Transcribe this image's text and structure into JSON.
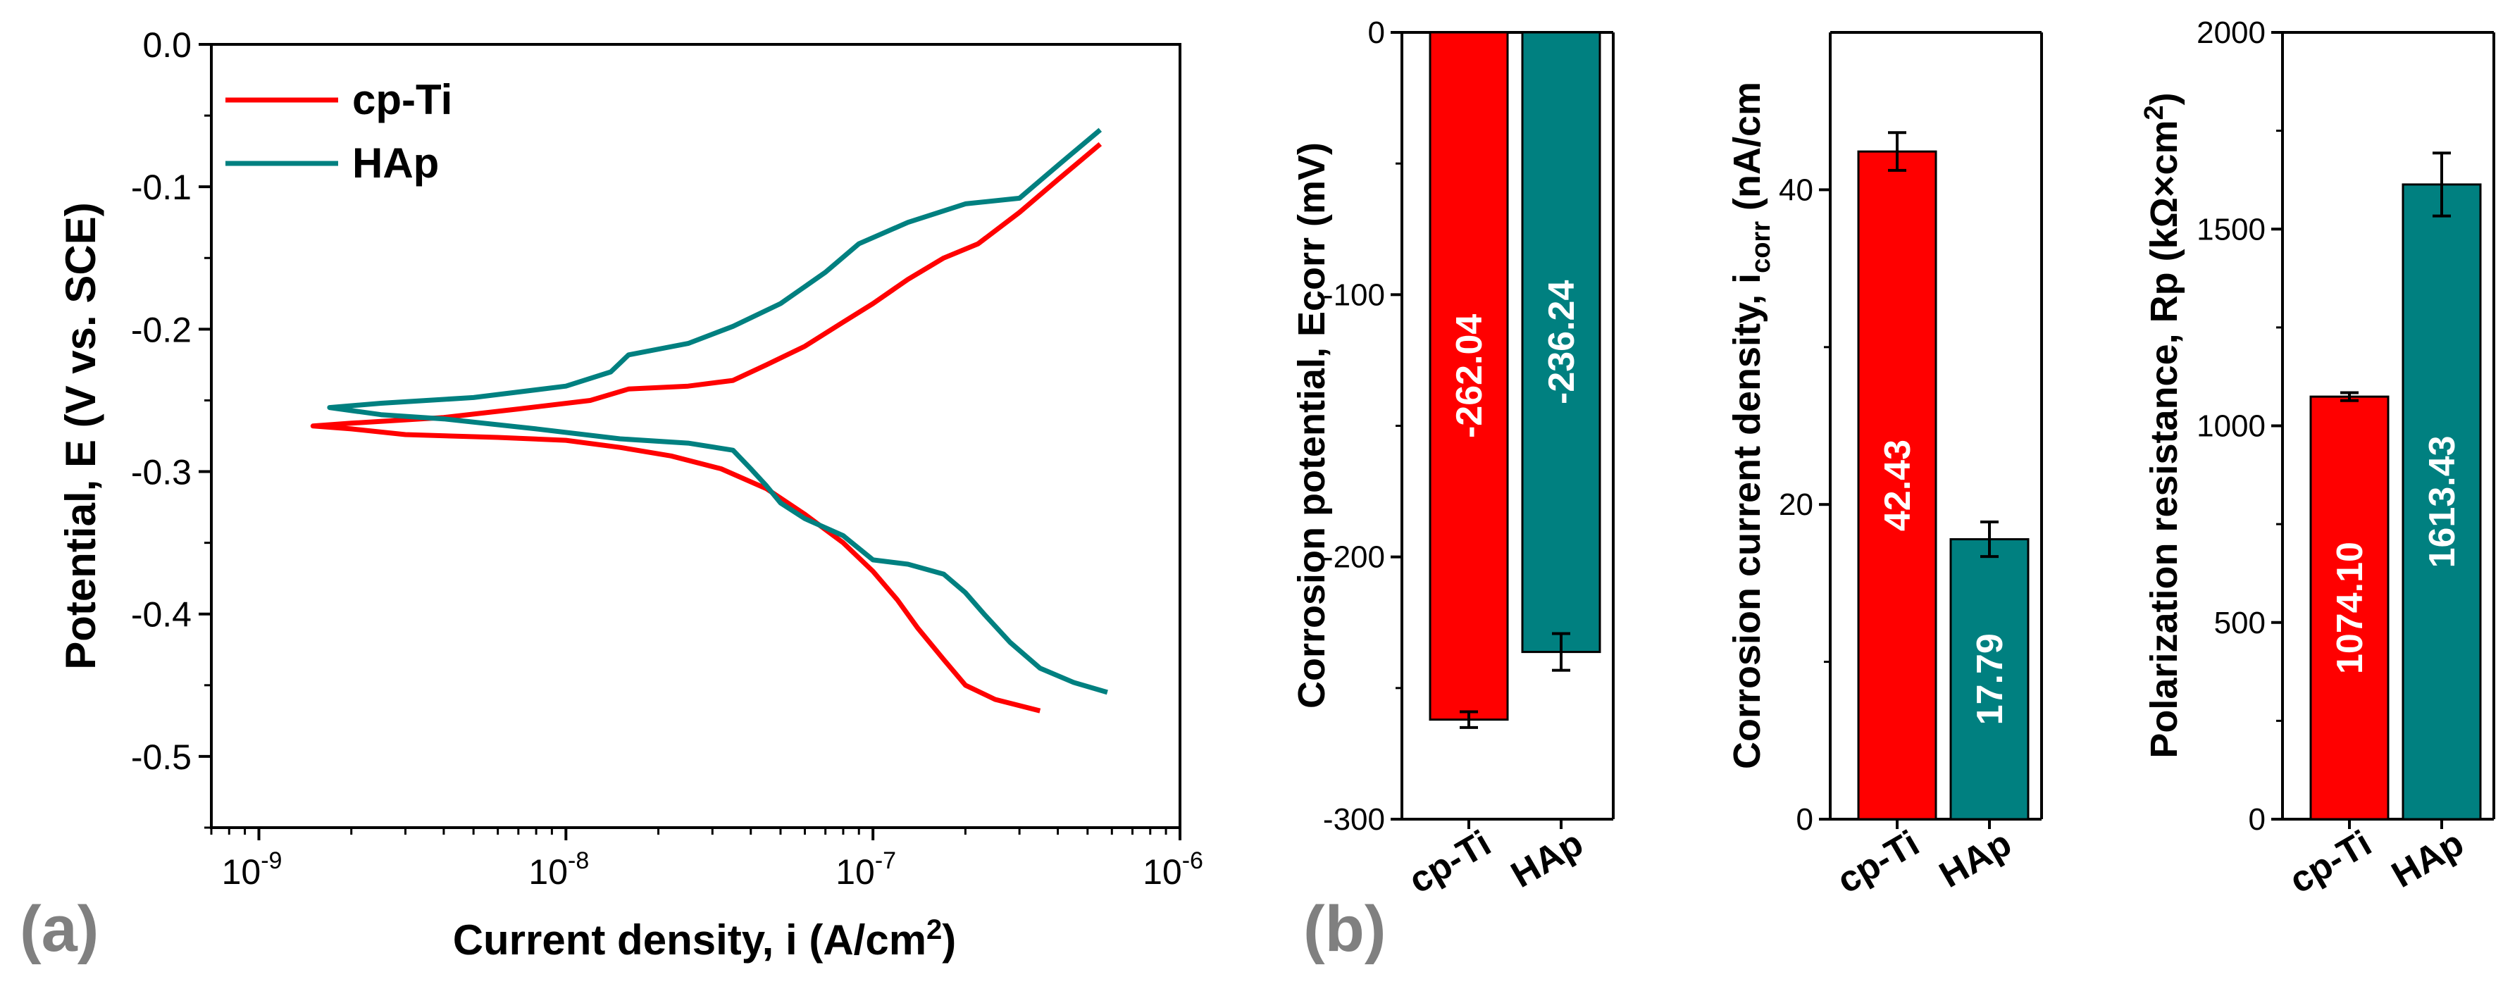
{
  "colors": {
    "cp_ti": "#ff0000",
    "hap": "#008080",
    "axis": "#000000",
    "panel_label": "#808080",
    "bar_text": "#ffffff"
  },
  "panel_labels": {
    "a": "(a)",
    "b": "(b)"
  },
  "chart_data": [
    {
      "type": "line",
      "title": "",
      "xlabel": "Current density, i (A/cm",
      "xlabel_sup": "2",
      "xlabel_end": ")",
      "ylabel": "Potential, E (V vs. SCE)",
      "xscale": "log",
      "xlim": [
        7e-10,
        1e-06
      ],
      "ylim": [
        -0.55,
        0.0
      ],
      "x_ticks": [
        {
          "value": 1e-09,
          "base": "10",
          "exp": "-9"
        },
        {
          "value": 1e-08,
          "base": "10",
          "exp": "-8"
        },
        {
          "value": 1e-07,
          "base": "10",
          "exp": "-7"
        },
        {
          "value": 1e-06,
          "base": "10",
          "exp": "-6"
        }
      ],
      "y_ticks": [
        {
          "value": 0.0,
          "label": "0.0"
        },
        {
          "value": -0.1,
          "label": "-0.1"
        },
        {
          "value": -0.2,
          "label": "-0.2"
        },
        {
          "value": -0.3,
          "label": "-0.3"
        },
        {
          "value": -0.4,
          "label": "-0.4"
        },
        {
          "value": -0.5,
          "label": "-0.5"
        }
      ],
      "legend_position": "top-left",
      "series": [
        {
          "name": "cp-Ti",
          "color": "#ff0000",
          "points": [
            [
              3.5e-07,
              -0.468
            ],
            [
              2.5e-07,
              -0.46
            ],
            [
              2e-07,
              -0.45
            ],
            [
              1.7e-07,
              -0.432
            ],
            [
              1.4e-07,
              -0.41
            ],
            [
              1.2e-07,
              -0.39
            ],
            [
              1e-07,
              -0.37
            ],
            [
              8e-08,
              -0.35
            ],
            [
              6e-08,
              -0.33
            ],
            [
              4.5e-08,
              -0.312
            ],
            [
              3.2e-08,
              -0.298
            ],
            [
              2.2e-08,
              -0.289
            ],
            [
              1.5e-08,
              -0.283
            ],
            [
              1e-08,
              -0.278
            ],
            [
              6e-09,
              -0.276
            ],
            [
              3e-09,
              -0.274
            ],
            [
              2e-09,
              -0.27
            ],
            [
              1.5e-09,
              -0.268
            ],
            [
              2e-09,
              -0.266
            ],
            [
              4e-09,
              -0.262
            ],
            [
              7e-09,
              -0.256
            ],
            [
              1.2e-08,
              -0.25
            ],
            [
              1.6e-08,
              -0.242
            ],
            [
              2.5e-08,
              -0.24
            ],
            [
              3.5e-08,
              -0.236
            ],
            [
              4.5e-08,
              -0.225
            ],
            [
              6e-08,
              -0.212
            ],
            [
              8e-08,
              -0.195
            ],
            [
              1e-07,
              -0.182
            ],
            [
              1.3e-07,
              -0.165
            ],
            [
              1.7e-07,
              -0.15
            ],
            [
              2.2e-07,
              -0.14
            ],
            [
              3e-07,
              -0.118
            ],
            [
              4e-07,
              -0.095
            ],
            [
              5.5e-07,
              -0.07
            ]
          ]
        },
        {
          "name": "HAp",
          "color": "#008080",
          "points": [
            [
              5.8e-07,
              -0.455
            ],
            [
              4.5e-07,
              -0.448
            ],
            [
              3.5e-07,
              -0.438
            ],
            [
              2.8e-07,
              -0.42
            ],
            [
              2.3e-07,
              -0.4
            ],
            [
              2e-07,
              -0.385
            ],
            [
              1.7e-07,
              -0.372
            ],
            [
              1.3e-07,
              -0.365
            ],
            [
              1e-07,
              -0.362
            ],
            [
              8e-08,
              -0.345
            ],
            [
              6e-08,
              -0.333
            ],
            [
              5e-08,
              -0.322
            ],
            [
              4.5e-08,
              -0.31
            ],
            [
              4e-08,
              -0.298
            ],
            [
              3.5e-08,
              -0.285
            ],
            [
              2.5e-08,
              -0.28
            ],
            [
              1.5e-08,
              -0.277
            ],
            [
              8e-09,
              -0.27
            ],
            [
              4e-09,
              -0.263
            ],
            [
              2.5e-09,
              -0.26
            ],
            [
              1.7e-09,
              -0.255
            ],
            [
              2.5e-09,
              -0.252
            ],
            [
              5e-09,
              -0.248
            ],
            [
              1e-08,
              -0.24
            ],
            [
              1.4e-08,
              -0.23
            ],
            [
              1.6e-08,
              -0.218
            ],
            [
              2.5e-08,
              -0.21
            ],
            [
              3.5e-08,
              -0.198
            ],
            [
              5e-08,
              -0.182
            ],
            [
              7e-08,
              -0.16
            ],
            [
              9e-08,
              -0.14
            ],
            [
              1.3e-07,
              -0.125
            ],
            [
              2e-07,
              -0.112
            ],
            [
              3e-07,
              -0.108
            ],
            [
              4e-07,
              -0.085
            ],
            [
              5.5e-07,
              -0.06
            ]
          ]
        }
      ]
    },
    {
      "type": "bar",
      "ylabel": "Corrosion potential, Ecorr (mV)",
      "categories": [
        "cp-Ti",
        "HAp"
      ],
      "values": [
        -262.04,
        -236.24
      ],
      "value_labels": [
        "-262.04",
        "-236.24"
      ],
      "errors": [
        3,
        7
      ],
      "colors": [
        "#ff0000",
        "#008080"
      ],
      "ylim": [
        -300,
        0
      ],
      "y_ticks": [
        {
          "value": 0,
          "label": "0"
        },
        {
          "value": -100,
          "label": "-100"
        },
        {
          "value": -200,
          "label": "-200"
        },
        {
          "value": -300,
          "label": "-300"
        }
      ]
    },
    {
      "type": "bar",
      "ylabel": "Corrosion current density, i",
      "ylabel_sub": "corr",
      "ylabel_end": " (nA/cm",
      "categories": [
        "cp-Ti",
        "HAp"
      ],
      "values": [
        42.43,
        17.79
      ],
      "value_labels": [
        "42.43",
        "17.79"
      ],
      "errors": [
        1.2,
        1.1
      ],
      "colors": [
        "#ff0000",
        "#008080"
      ],
      "ylim": [
        0,
        50
      ],
      "y_ticks": [
        {
          "value": 0,
          "label": "0"
        },
        {
          "value": 20,
          "label": "20"
        },
        {
          "value": 40,
          "label": "40"
        }
      ]
    },
    {
      "type": "bar",
      "ylabel": "Polarization resistance, Rp (kΩ×cm",
      "ylabel_sup": "2",
      "ylabel_end": ")",
      "categories": [
        "cp-Ti",
        "HAp"
      ],
      "values": [
        1074.1,
        1613.43
      ],
      "value_labels": [
        "1074.10",
        "1613.43"
      ],
      "errors": [
        10,
        80
      ],
      "colors": [
        "#ff0000",
        "#008080"
      ],
      "ylim": [
        0,
        2000
      ],
      "y_ticks": [
        {
          "value": 0,
          "label": "0"
        },
        {
          "value": 500,
          "label": "500"
        },
        {
          "value": 1000,
          "label": "1000"
        },
        {
          "value": 1500,
          "label": "1500"
        },
        {
          "value": 2000,
          "label": "2000"
        }
      ]
    }
  ]
}
